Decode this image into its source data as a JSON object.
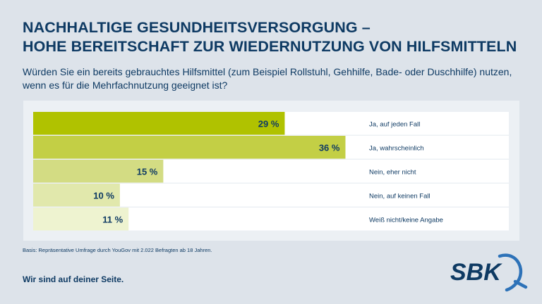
{
  "header": {
    "title_line1": "NACHHALTIGE GESUNDHEITSVERSORGUNG –",
    "title_line2": "HOHE BEREITSCHAFT ZUR WIEDERNUTZUNG VON HILFSMITTELN",
    "question": "Würden Sie ein bereits gebrauchtes Hilfsmittel (zum Beispiel Rollstuhl, Gehhilfe, Bade- oder Duschhilfe) nutzen, wenn es für die Mehrfachnutzung geeignet ist?"
  },
  "chart_data": {
    "type": "bar",
    "orientation": "horizontal",
    "categories": [
      "Ja, auf jeden Fall",
      "Ja, wahrscheinlich",
      "Nein, eher nicht",
      "Nein, auf keinen Fall",
      "Weiß nicht/keine Angabe"
    ],
    "values": [
      29,
      36,
      15,
      10,
      11
    ],
    "value_labels": [
      "29 %",
      "36 %",
      "15 %",
      "10 %",
      "11 %"
    ],
    "unit": "%",
    "xlim": [
      0,
      55
    ],
    "grid": false,
    "legend": "none",
    "colors": [
      "#b0c200",
      "#c3cf45",
      "#d3dc83",
      "#e1e8ac",
      "#eef3d0"
    ]
  },
  "footer": {
    "basis": "Basis: Repräsentative Umfrage durch YouGov mit 2.022 Befragten ab 18 Jahren.",
    "slogan": "Wir sind auf deiner Seite."
  },
  "brand": {
    "logo_text": "SBK",
    "navy": "#0e3a63",
    "arc_color": "#2d72b8"
  }
}
